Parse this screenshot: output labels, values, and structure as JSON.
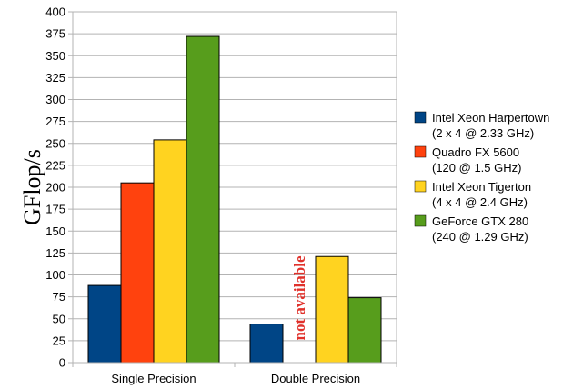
{
  "chart_data": {
    "type": "bar",
    "title": "",
    "xlabel": "",
    "ylabel": "GFlop/s",
    "ylim": [
      0,
      400
    ],
    "ytick_step": 25,
    "grid": true,
    "legend_position": "right",
    "categories": [
      "Single Precision",
      "Double Precision"
    ],
    "series": [
      {
        "name": "Intel Xeon Harpertown",
        "detail": "(2 x 4 @ 2.33 GHz)",
        "color": "#004586",
        "values": [
          88,
          44
        ]
      },
      {
        "name": "Quadro FX 5600",
        "detail": "(120 @ 1.5 GHz)",
        "color": "#ff420e",
        "values": [
          205,
          null
        ]
      },
      {
        "name": "Intel Xeon Tigerton",
        "detail": "(4 x 4 @ 2.4 GHz)",
        "color": "#ffd320",
        "values": [
          254,
          121
        ]
      },
      {
        "name": "GeForce GTX 280",
        "detail": "(240 @ 1.29 GHz)",
        "color": "#579d1c",
        "values": [
          372,
          74
        ]
      }
    ],
    "annotations": [
      {
        "text": "not available",
        "series": 1,
        "category": 1,
        "color": "#e0312b"
      }
    ]
  }
}
